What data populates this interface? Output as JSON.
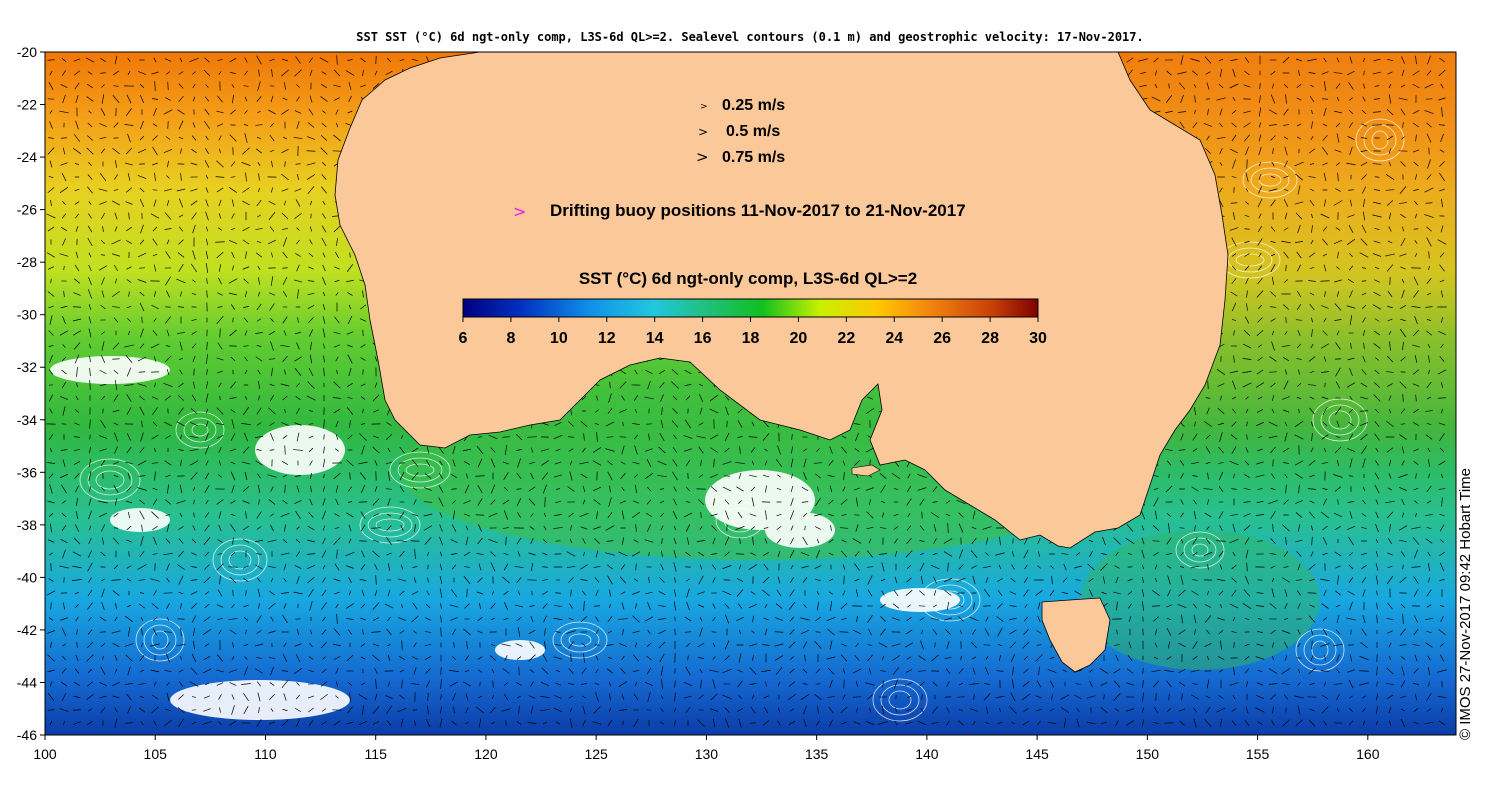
{
  "title": "SST SST (°C) 6d ngt-only comp, L3S-6d QL>=2. Sealevel contours (0.1 m) and geostrophic velocity: 17-Nov-2017.",
  "credit": "© IMOS 27-Nov-2017 09:42 Hobart Time",
  "axes": {
    "x_ticks": [
      "100",
      "105",
      "110",
      "115",
      "120",
      "125",
      "130",
      "135",
      "140",
      "145",
      "150",
      "155",
      "160"
    ],
    "y_ticks": [
      "-20",
      "-22",
      "-24",
      "-26",
      "-28",
      "-30",
      "-32",
      "-34",
      "-36",
      "-38",
      "-40",
      "-42",
      "-44",
      "-46"
    ],
    "x_range": [
      100,
      164
    ],
    "y_range": [
      -46,
      -20
    ]
  },
  "velocity_legend": {
    "items": [
      {
        "label": "0.25 m/s",
        "speed": 0.25
      },
      {
        "label": "0.5 m/s",
        "speed": 0.5
      },
      {
        "label": "0.75 m/s",
        "speed": 0.75
      }
    ],
    "buoy_label": "Drifting buoy positions 11-Nov-2017 to 21-Nov-2017",
    "buoy_color": "#e020e0"
  },
  "colorbar": {
    "title": "SST (°C) 6d ngt-only comp, L3S-6d QL>=2",
    "ticks": [
      "6",
      "8",
      "10",
      "12",
      "14",
      "16",
      "18",
      "20",
      "22",
      "24",
      "26",
      "28",
      "30"
    ],
    "range": [
      6,
      30
    ]
  },
  "colors": {
    "land": "#fbc89a",
    "cloud": "#ffffff"
  }
}
